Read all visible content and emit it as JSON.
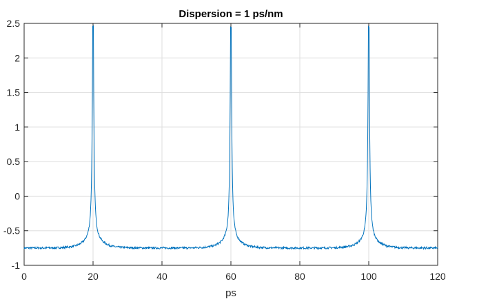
{
  "chart_data": {
    "type": "line",
    "title": "Dispersion = 1 ps/nm",
    "xlabel": "ps",
    "ylabel": "",
    "xlim": [
      0,
      120
    ],
    "ylim": [
      -1,
      2.5
    ],
    "xticks": [
      0,
      20,
      40,
      60,
      80,
      100,
      120
    ],
    "yticks": [
      -1,
      -0.5,
      0,
      0.5,
      1,
      1.5,
      2,
      2.5
    ],
    "xtick_labels": [
      "0",
      "20",
      "40",
      "60",
      "80",
      "100",
      "120"
    ],
    "ytick_labels": [
      "-1",
      "-0.5",
      "0",
      "0.5",
      "1",
      "1.5",
      "2",
      "2.5"
    ],
    "grid": true,
    "baseline": -0.75,
    "series": [
      {
        "color": "#0072bd",
        "peaks": [
          {
            "x": 20,
            "y": 2.45
          },
          {
            "x": 60,
            "y": 2.45
          },
          {
            "x": 100,
            "y": 2.45
          }
        ],
        "x": [
          0,
          4,
          8,
          12,
          16,
          18,
          19,
          19.5,
          20,
          20.5,
          21,
          22,
          24,
          28,
          32,
          36,
          40,
          44,
          48,
          52,
          56,
          58,
          59,
          59.5,
          60,
          60.5,
          61,
          62,
          64,
          68,
          72,
          76,
          80,
          84,
          88,
          92,
          96,
          98,
          99,
          99.5,
          100,
          100.5,
          101,
          102,
          104,
          108,
          112,
          116,
          120
        ],
        "y": [
          -0.74,
          -0.74,
          -0.73,
          -0.72,
          -0.66,
          -0.5,
          -0.1,
          0.85,
          2.45,
          0.85,
          -0.12,
          -0.5,
          -0.64,
          -0.71,
          -0.73,
          -0.74,
          -0.75,
          -0.74,
          -0.73,
          -0.72,
          -0.66,
          -0.5,
          -0.1,
          0.85,
          2.45,
          0.85,
          -0.12,
          -0.5,
          -0.64,
          -0.71,
          -0.73,
          -0.74,
          -0.75,
          -0.74,
          -0.73,
          -0.72,
          -0.66,
          -0.5,
          -0.1,
          0.85,
          2.45,
          0.85,
          -0.12,
          -0.5,
          -0.64,
          -0.71,
          -0.73,
          -0.74,
          -0.74
        ]
      }
    ]
  }
}
